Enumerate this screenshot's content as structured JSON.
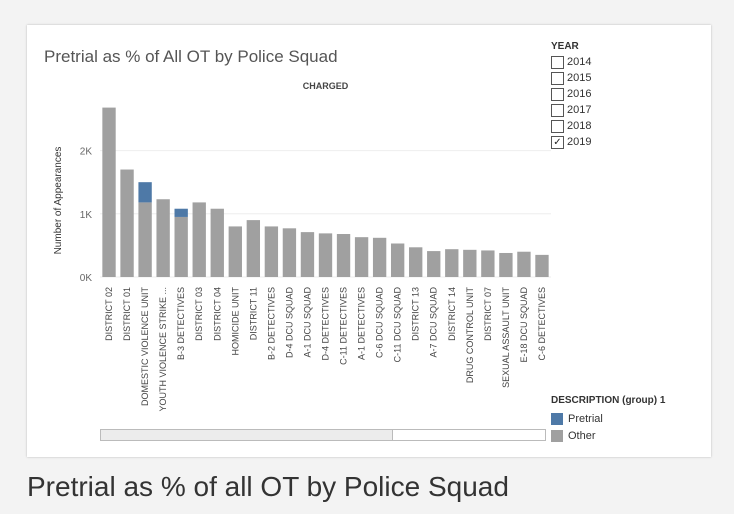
{
  "caption": "Pretrial as % of all OT by Police Squad",
  "colors": {
    "pretrial": "#4e79a7",
    "other": "#a0a0a0",
    "grid": "#eeeeee"
  },
  "year_filter": {
    "title": "YEAR",
    "options": [
      {
        "label": "2014",
        "checked": false
      },
      {
        "label": "2015",
        "checked": false
      },
      {
        "label": "2016",
        "checked": false
      },
      {
        "label": "2017",
        "checked": false
      },
      {
        "label": "2018",
        "checked": false
      },
      {
        "label": "2019",
        "checked": true
      }
    ],
    "check_mark": "✓"
  },
  "description_legend": {
    "title": "DESCRIPTION (group) 1",
    "items": [
      {
        "label": "Pretrial",
        "color": "#4e79a7"
      },
      {
        "label": "Other",
        "color": "#a0a0a0"
      }
    ]
  },
  "chart_data": {
    "type": "bar",
    "stacked": true,
    "title": "Pretrial as % of All OT by Police Squad",
    "subtitle": "CHARGED",
    "ylabel": "Number of Appearances",
    "xlabel": "",
    "ylim": [
      0,
      2800
    ],
    "yticks": [
      0,
      1000,
      2000
    ],
    "ytick_labels": [
      "0K",
      "1K",
      "2K"
    ],
    "grid": true,
    "categories": [
      "DISTRICT 02",
      "DISTRICT 01",
      "DOMESTIC VIOLENCE UNIT",
      "YOUTH VIOLENCE STRIKE ...",
      "B-3  DETECTIVES",
      "DISTRICT 03",
      "DISTRICT 04",
      "HOMICIDE UNIT",
      "DISTRICT 11",
      "B-2  DETECTIVES",
      "D-4  DCU SQUAD",
      "A-1  DCU SQUAD",
      "D-4  DETECTIVES",
      "C-11 DETECTIVES",
      "A-1  DETECTIVES",
      "C-6  DCU SQUAD",
      "C-11 DCU SQUAD",
      "DISTRICT 13",
      "A-7  DCU SQUAD",
      "DISTRICT 14",
      "DRUG CONTROL UNIT",
      "DISTRICT 07",
      "SEXUAL ASSAULT UNIT",
      "E-18 DCU SQUAD",
      "C-6  DETECTIVES"
    ],
    "series": [
      {
        "name": "Other",
        "values": [
          2680,
          1700,
          1180,
          1230,
          950,
          1180,
          1080,
          800,
          900,
          800,
          770,
          710,
          690,
          680,
          630,
          620,
          530,
          470,
          410,
          440,
          430,
          420,
          380,
          400,
          350
        ]
      },
      {
        "name": "Pretrial",
        "values": [
          0,
          0,
          320,
          0,
          130,
          0,
          0,
          0,
          0,
          0,
          0,
          0,
          0,
          0,
          0,
          0,
          0,
          0,
          0,
          0,
          0,
          0,
          0,
          0,
          0
        ]
      }
    ]
  }
}
